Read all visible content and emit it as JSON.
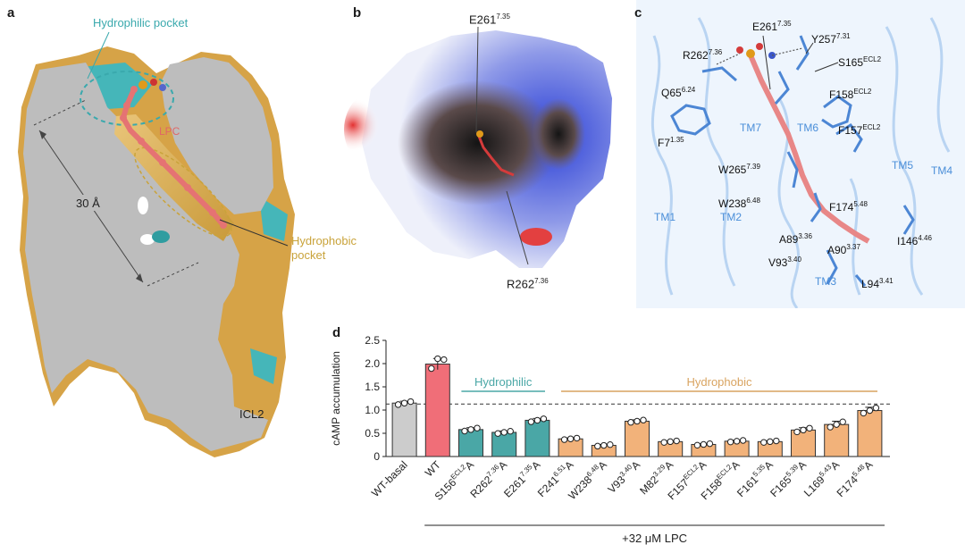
{
  "panels": {
    "a": {
      "label": "a",
      "hydrophilic_pocket": "Hydrophilic pocket",
      "lpc": "LPC",
      "distance": "30 Å",
      "hydrophobic_pocket_1": "Hydrophobic",
      "hydrophobic_pocket_2": "pocket",
      "icl2": "ICL2",
      "colors": {
        "hydrophilic": "#3aa9ad",
        "hydrophobic": "#d9a441",
        "lpc": "#e06666"
      }
    },
    "b": {
      "label": "b",
      "e261": "E261",
      "e261_sup": "7.35",
      "r262": "R262",
      "r262_sup": "7.36"
    },
    "c": {
      "label": "c",
      "residues": [
        {
          "name": "E261",
          "sup": "7.35"
        },
        {
          "name": "R262",
          "sup": "7.36"
        },
        {
          "name": "Y257",
          "sup": "7.31"
        },
        {
          "name": "S165",
          "sup": "ECL2"
        },
        {
          "name": "F158",
          "sup": "ECL2"
        },
        {
          "name": "Q65",
          "sup": "6.24"
        },
        {
          "name": "F157",
          "sup": "ECL2"
        },
        {
          "name": "F7",
          "sup": "1.35"
        },
        {
          "name": "W265",
          "sup": "7.39"
        },
        {
          "name": "W238",
          "sup": "6.48"
        },
        {
          "name": "F174",
          "sup": "5.48"
        },
        {
          "name": "A89",
          "sup": "3.36"
        },
        {
          "name": "I146",
          "sup": "4.46"
        },
        {
          "name": "A90",
          "sup": "3.37"
        },
        {
          "name": "V93",
          "sup": "3.40"
        },
        {
          "name": "L94",
          "sup": "3.41"
        }
      ],
      "helices": [
        "TM7",
        "TM6",
        "TM5",
        "TM4",
        "TM1",
        "TM2",
        "TM3"
      ]
    }
  },
  "chart_data": {
    "type": "bar",
    "label": "d",
    "ylabel": "cAMP accumulation",
    "ylim": [
      0,
      2.5
    ],
    "yticks": [
      "0",
      "0.5",
      "1.0",
      "1.5",
      "2.0",
      "2.5"
    ],
    "baseline": 1.13,
    "categories": [
      {
        "name": "WT-basal",
        "sup": "",
        "suffix": ""
      },
      {
        "name": "WT",
        "sup": "",
        "suffix": ""
      },
      {
        "name": "S156",
        "sup": "ECL2",
        "suffix": "A"
      },
      {
        "name": "R262",
        "sup": "7.36",
        "suffix": "A"
      },
      {
        "name": "E261",
        "sup": "7.35",
        "suffix": "A"
      },
      {
        "name": "F241",
        "sup": "6.51",
        "suffix": "A"
      },
      {
        "name": "W238",
        "sup": "6.48",
        "suffix": "A"
      },
      {
        "name": "V93",
        "sup": "3.40",
        "suffix": "A"
      },
      {
        "name": "M82",
        "sup": "3.29",
        "suffix": "A"
      },
      {
        "name": "F157",
        "sup": "ECL2",
        "suffix": "A"
      },
      {
        "name": "F158",
        "sup": "ECL2",
        "suffix": "A"
      },
      {
        "name": "F161",
        "sup": "5.35",
        "suffix": "A"
      },
      {
        "name": "F165",
        "sup": "5.39",
        "suffix": "A"
      },
      {
        "name": "L169",
        "sup": "5.43",
        "suffix": "A"
      },
      {
        "name": "F174",
        "sup": "5.48",
        "suffix": "A"
      }
    ],
    "values": [
      1.15,
      1.99,
      0.58,
      0.52,
      0.78,
      0.38,
      0.24,
      0.76,
      0.32,
      0.26,
      0.33,
      0.32,
      0.57,
      0.69,
      0.99
    ],
    "errors": [
      0.04,
      0.12,
      0.04,
      0.03,
      0.04,
      0.02,
      0.02,
      0.03,
      0.02,
      0.02,
      0.02,
      0.02,
      0.05,
      0.07,
      0.07
    ],
    "groups": [
      {
        "name": "Hydrophilic",
        "from": 2,
        "to": 4,
        "color": "#4aa7a6"
      },
      {
        "name": "Hydrophobic",
        "from": 5,
        "to": 14,
        "color": "#d9a461"
      }
    ],
    "colors": [
      "#cccccc",
      "#f06e78",
      "#4aa7a6",
      "#4aa7a6",
      "#4aa7a6",
      "#f2b27a",
      "#f2b27a",
      "#f2b27a",
      "#f2b27a",
      "#f2b27a",
      "#f2b27a",
      "#f2b27a",
      "#f2b27a",
      "#f2b27a",
      "#f2b27a"
    ],
    "treatment": "+32 μM LPC"
  }
}
